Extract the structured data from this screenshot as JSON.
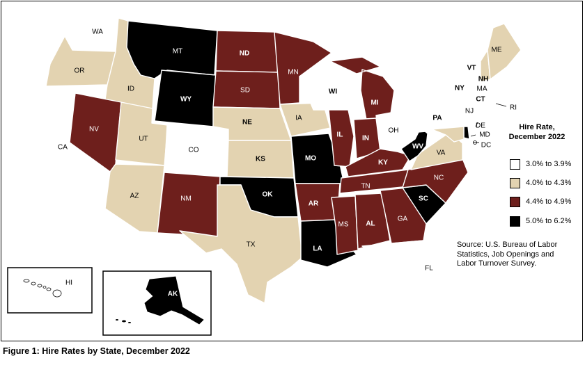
{
  "legend": {
    "title_line1": "Hire Rate,",
    "title_line2": "December 2022",
    "bins": [
      {
        "label": "3.0% to 3.9%",
        "color": "#ffffff"
      },
      {
        "label": "4.0% to 4.3%",
        "color": "#e3d3b1"
      },
      {
        "label": "4.4% to 4.9%",
        "color": "#6e1f1c"
      },
      {
        "label": "5.0% to 6.2%",
        "color": "#000000"
      }
    ]
  },
  "source": {
    "line1": "Source: U.S. Bureau of Labor",
    "line2": "Statistics, Job Openings and",
    "line3": "Labor Turnover Survey."
  },
  "caption": "Figure 1: Hire Rates by State, December 2022",
  "states": [
    {
      "abbr": "WA",
      "bin": 0
    },
    {
      "abbr": "OR",
      "bin": 1
    },
    {
      "abbr": "CA",
      "bin": 0
    },
    {
      "abbr": "ID",
      "bin": 1
    },
    {
      "abbr": "NV",
      "bin": 2
    },
    {
      "abbr": "MT",
      "bin": 3
    },
    {
      "abbr": "WY",
      "bin": 3
    },
    {
      "abbr": "UT",
      "bin": 1
    },
    {
      "abbr": "AZ",
      "bin": 1
    },
    {
      "abbr": "CO",
      "bin": 0
    },
    {
      "abbr": "NM",
      "bin": 2
    },
    {
      "abbr": "ND",
      "bin": 2
    },
    {
      "abbr": "SD",
      "bin": 2
    },
    {
      "abbr": "NE",
      "bin": 1
    },
    {
      "abbr": "KS",
      "bin": 1
    },
    {
      "abbr": "OK",
      "bin": 3
    },
    {
      "abbr": "TX",
      "bin": 1
    },
    {
      "abbr": "MN",
      "bin": 2
    },
    {
      "abbr": "IA",
      "bin": 1
    },
    {
      "abbr": "MO",
      "bin": 3
    },
    {
      "abbr": "AR",
      "bin": 2
    },
    {
      "abbr": "LA",
      "bin": 3
    },
    {
      "abbr": "WI",
      "bin": 0
    },
    {
      "abbr": "IL",
      "bin": 2
    },
    {
      "abbr": "MI",
      "bin": 2
    },
    {
      "abbr": "IN",
      "bin": 2
    },
    {
      "abbr": "OH",
      "bin": 0
    },
    {
      "abbr": "KY",
      "bin": 2
    },
    {
      "abbr": "TN",
      "bin": 2
    },
    {
      "abbr": "MS",
      "bin": 2
    },
    {
      "abbr": "AL",
      "bin": 2
    },
    {
      "abbr": "GA",
      "bin": 2
    },
    {
      "abbr": "FL",
      "bin": 0
    },
    {
      "abbr": "SC",
      "bin": 3
    },
    {
      "abbr": "NC",
      "bin": 2
    },
    {
      "abbr": "VA",
      "bin": 1
    },
    {
      "abbr": "WV",
      "bin": 3
    },
    {
      "abbr": "PA",
      "bin": 0
    },
    {
      "abbr": "NY",
      "bin": 0
    },
    {
      "abbr": "NJ",
      "bin": 0
    },
    {
      "abbr": "DE",
      "bin": 3
    },
    {
      "abbr": "MD",
      "bin": 1
    },
    {
      "abbr": "DC",
      "bin": 0
    },
    {
      "abbr": "CT",
      "bin": 0
    },
    {
      "abbr": "RI",
      "bin": 0
    },
    {
      "abbr": "MA",
      "bin": 0
    },
    {
      "abbr": "VT",
      "bin": 0
    },
    {
      "abbr": "NH",
      "bin": 1
    },
    {
      "abbr": "ME",
      "bin": 1
    },
    {
      "abbr": "AK",
      "bin": 3
    },
    {
      "abbr": "HI",
      "bin": 0
    }
  ]
}
